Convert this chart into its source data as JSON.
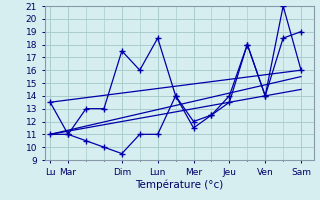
{
  "background_color": "#d6eef0",
  "grid_color": "#aacccc",
  "line_color": "#0000aa",
  "xlabel": "Température (°c)",
  "ylim": [
    9,
    21
  ],
  "yticks": [
    9,
    10,
    11,
    12,
    13,
    14,
    15,
    16,
    17,
    18,
    19,
    20,
    21
  ],
  "x_tick_positions": [
    0,
    1,
    4,
    6,
    8,
    10,
    12,
    14
  ],
  "x_tick_labels": [
    "Lu",
    "Mar",
    "Dim",
    "Lun",
    "Mer",
    "Jeu",
    "Ven",
    "Sam"
  ],
  "line1_x": [
    0,
    1,
    2,
    3,
    4,
    5,
    6,
    7,
    8,
    9,
    10,
    11,
    12,
    13,
    14
  ],
  "line1_y": [
    13.5,
    11.0,
    13.0,
    13.0,
    17.5,
    16.0,
    18.5,
    14.0,
    12.0,
    12.5,
    14.0,
    18.0,
    14.0,
    21.0,
    16.0
  ],
  "line2_x": [
    0,
    1,
    2,
    3,
    4,
    5,
    6,
    7,
    8,
    9,
    10,
    11,
    12,
    13,
    14
  ],
  "line2_y": [
    11.0,
    11.0,
    10.5,
    10.0,
    9.5,
    11.0,
    11.0,
    14.0,
    11.5,
    12.5,
    13.5,
    18.0,
    14.0,
    18.5,
    19.0
  ],
  "trend1_x": [
    0,
    14
  ],
  "trend1_y": [
    11.0,
    15.5
  ],
  "trend2_x": [
    0,
    14
  ],
  "trend2_y": [
    13.5,
    16.0
  ],
  "trend3_x": [
    0,
    14
  ],
  "trend3_y": [
    11.0,
    14.5
  ],
  "xlim": [
    -0.3,
    14.7
  ]
}
